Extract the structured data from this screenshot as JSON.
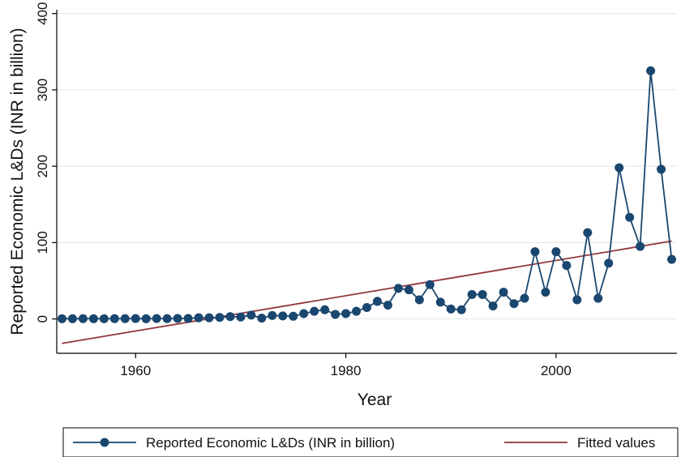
{
  "chart_data": {
    "type": "line",
    "xlabel": "Year",
    "ylabel": "Reported Economic L&Ds (INR in billion)",
    "xlim": [
      1952.5,
      2011.5
    ],
    "ylim": [
      -45,
      405
    ],
    "x_ticks": [
      1960,
      1980,
      2000
    ],
    "y_ticks": [
      0,
      100,
      200,
      300,
      400
    ],
    "grid": "horizontal",
    "legend_position": "bottom",
    "series": [
      {
        "name": "Reported Economic L&Ds (INR in billion)",
        "type": "line-markers",
        "color": "#1a476f",
        "x": [
          1953,
          1954,
          1955,
          1956,
          1957,
          1958,
          1959,
          1960,
          1961,
          1962,
          1963,
          1964,
          1965,
          1966,
          1967,
          1968,
          1969,
          1970,
          1971,
          1972,
          1973,
          1974,
          1975,
          1976,
          1977,
          1978,
          1979,
          1980,
          1981,
          1982,
          1983,
          1984,
          1985,
          1986,
          1987,
          1988,
          1989,
          1990,
          1991,
          1992,
          1993,
          1994,
          1995,
          1996,
          1997,
          1998,
          1999,
          2000,
          2001,
          2002,
          2003,
          2004,
          2005,
          2006,
          2007,
          2008,
          2009,
          2010,
          2011
        ],
        "y": [
          0.3,
          0.3,
          0.4,
          0.3,
          0.3,
          0.4,
          0.4,
          0.5,
          0.3,
          0.5,
          0.4,
          0.6,
          0.6,
          1.5,
          1.5,
          2,
          3,
          2.5,
          5,
          1,
          4.5,
          4,
          3.5,
          7,
          10,
          12,
          6,
          7,
          10,
          15,
          23,
          18,
          40,
          38,
          25,
          45,
          22,
          13,
          12,
          32,
          32,
          17,
          35,
          20,
          27,
          88,
          35,
          88,
          70,
          25,
          113,
          27,
          73,
          198,
          133,
          95,
          325,
          196,
          78
        ]
      },
      {
        "name": "Fitted values",
        "type": "line",
        "color": "#90353b",
        "x": [
          1953,
          2011
        ],
        "y": [
          -32,
          102
        ]
      }
    ]
  }
}
